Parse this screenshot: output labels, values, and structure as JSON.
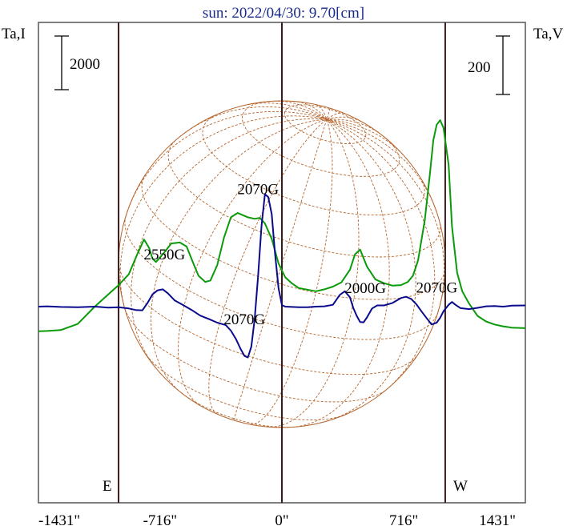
{
  "title": "sun: 2022/04/30: 9.70[cm]",
  "left_axis_label": "Ta,I",
  "right_axis_label": "Ta,V",
  "left_scale_bar": "2000",
  "right_scale_bar": "200",
  "east_label": "E",
  "west_label": "W",
  "x_ticks": [
    "-1431\"",
    "-716\"",
    "0\"",
    "716\"",
    "1431\""
  ],
  "colors": {
    "intensity": "#0a9a0a",
    "polarization": "#0a0a8c",
    "grid": "#b5652d",
    "frame": "#555555",
    "vline": "#3a1a1a"
  },
  "chart_data": {
    "type": "line",
    "x_unit": "arcsec",
    "xlim": [
      -1431,
      1431
    ],
    "solar_limb_x": [
      -960,
      960
    ],
    "annotations": [
      {
        "text": "2550G",
        "x": -690,
        "y": 1530
      },
      {
        "text": "2070G",
        "x": -140,
        "y": 3650
      },
      {
        "text": "2070G",
        "x": -220,
        "y": -570
      },
      {
        "text": "2000G",
        "x": 490,
        "y": 440
      },
      {
        "text": "2070G",
        "x": 910,
        "y": 460
      }
    ],
    "series": [
      {
        "key": "I",
        "x": [
          -1431,
          -1380,
          -1300,
          -1200,
          -1100,
          -1000,
          -960,
          -900,
          -850,
          -810,
          -780,
          -760,
          -740,
          -700,
          -650,
          -600,
          -560,
          -520,
          -490,
          -450,
          -420,
          -380,
          -340,
          -300,
          -260,
          -230,
          -200,
          -160,
          -130,
          -100,
          -60,
          -20,
          20,
          60,
          100,
          150,
          200,
          250,
          300,
          350,
          400,
          430,
          460,
          500,
          550,
          600,
          650,
          700,
          740,
          770,
          800,
          840,
          870,
          890,
          910,
          930,
          950,
          980,
          1000,
          1030,
          1060,
          1100,
          1150,
          1200,
          1250,
          1300,
          1350,
          1431
        ],
        "y": [
          -800,
          -790,
          -760,
          -560,
          0,
          500,
          700,
          1050,
          1700,
          2180,
          1900,
          1550,
          1450,
          1700,
          2050,
          2080,
          1950,
          1400,
          1000,
          800,
          850,
          1350,
          2250,
          2900,
          3040,
          2970,
          2900,
          2850,
          2880,
          2700,
          2200,
          1400,
          950,
          750,
          600,
          550,
          500,
          560,
          650,
          790,
          1200,
          1700,
          1850,
          1300,
          880,
          760,
          680,
          700,
          800,
          1000,
          1500,
          2800,
          4300,
          5400,
          5900,
          6050,
          5800,
          4600,
          2600,
          1100,
          500,
          100,
          -300,
          -480,
          -580,
          -640,
          -680,
          -700
        ]
      },
      {
        "key": "V",
        "x": [
          -1431,
          -1380,
          -1300,
          -1200,
          -1100,
          -1020,
          -960,
          -900,
          -860,
          -820,
          -790,
          -760,
          -730,
          -700,
          -670,
          -630,
          -580,
          -530,
          -480,
          -430,
          -380,
          -330,
          -300,
          -270,
          -245,
          -220,
          -200,
          -180,
          -160,
          -140,
          -120,
          -100,
          -80,
          -60,
          -40,
          -20,
          0,
          20,
          60,
          100,
          150,
          200,
          250,
          300,
          340,
          370,
          400,
          420,
          440,
          460,
          480,
          500,
          530,
          560,
          600,
          650,
          700,
          730,
          760,
          790,
          820,
          850,
          880,
          910,
          930,
          950,
          980,
          1000,
          1020,
          1050,
          1100,
          1150,
          1200,
          1250,
          1300,
          1350,
          1431
        ],
        "y": [
          0,
          10,
          -10,
          -20,
          0,
          -30,
          -20,
          -60,
          -110,
          -120,
          120,
          400,
          530,
          560,
          430,
          200,
          50,
          -110,
          -290,
          -400,
          -520,
          -600,
          -780,
          -1050,
          -1350,
          -1600,
          -1650,
          -1300,
          -400,
          1000,
          2600,
          3650,
          3550,
          3000,
          1700,
          600,
          50,
          0,
          -10,
          -20,
          -20,
          0,
          10,
          60,
          380,
          500,
          300,
          -50,
          -300,
          -500,
          -510,
          -350,
          -60,
          40,
          40,
          120,
          280,
          320,
          250,
          80,
          -150,
          -370,
          -580,
          -520,
          -360,
          -150,
          60,
          150,
          60,
          -50,
          -80,
          -40,
          10,
          20,
          0,
          30,
          40
        ]
      }
    ]
  }
}
